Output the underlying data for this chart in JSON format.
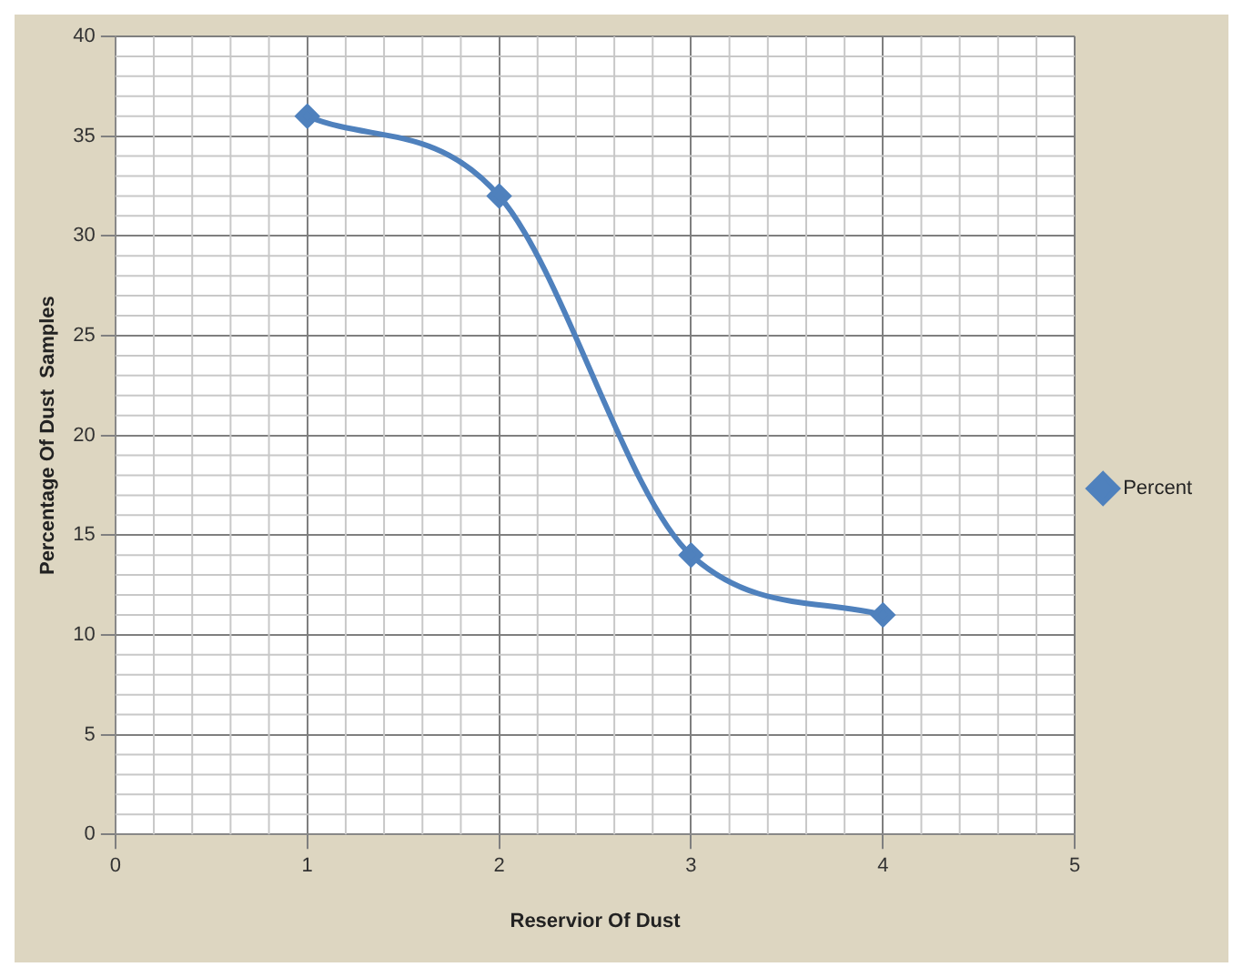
{
  "chart_data": {
    "type": "line",
    "xlabel": "Reservior Of Dust",
    "ylabel": "Percentage Of Dust  Samples",
    "x": [
      1,
      2,
      3,
      4
    ],
    "series": [
      {
        "name": "Percent",
        "color": "#4f81bd",
        "values": [
          36,
          32,
          14,
          11
        ]
      }
    ],
    "xlim": [
      0,
      5
    ],
    "xticks": [
      0,
      1,
      2,
      3,
      4,
      5
    ],
    "ylim": [
      0,
      40
    ],
    "yticks": [
      0,
      5,
      10,
      15,
      20,
      25,
      30,
      35,
      40
    ],
    "grid": true,
    "legend": "right",
    "marker": "diamond",
    "line_style": "solid"
  }
}
